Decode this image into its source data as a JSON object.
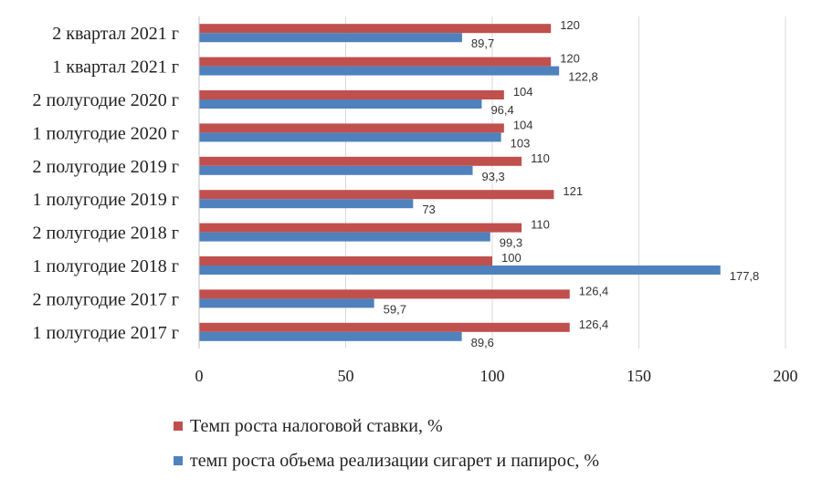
{
  "chart_data": {
    "type": "bar",
    "orientation": "horizontal",
    "categories": [
      "1 полугодие 2017 г",
      "2 полугодие 2017 г",
      "1 полугодие 2018 г",
      "2 полугодие 2018 г",
      "1 полугодие 2019 г",
      "2 полугодие 2019 г",
      "1 полугодие 2020 г",
      "2 полугодие 2020 г",
      "1 квартал 2021 г",
      "2 квартал 2021 г"
    ],
    "series": [
      {
        "name": "Темп роста налоговой ставки, %",
        "color": "#c0504d",
        "values": [
          126.4,
          126.4,
          100,
          110,
          121,
          110,
          104,
          104,
          120,
          120
        ],
        "labels": [
          "126,4",
          "126,4",
          "100",
          "110",
          "121",
          "110",
          "104",
          "104",
          "120",
          "120"
        ]
      },
      {
        "name": "темп роста объема реализации сигарет и папирос, %",
        "color": "#4f81bd",
        "values": [
          89.6,
          59.7,
          177.8,
          99.3,
          73,
          93.3,
          103,
          96.4,
          122.8,
          89.7
        ],
        "labels": [
          "89,6",
          "59,7",
          "177,8",
          "99,3",
          "73",
          "93,3",
          "103",
          "96,4",
          "122,8",
          "89,7"
        ]
      }
    ],
    "xlim": [
      0,
      200
    ],
    "xticks": [
      "0",
      "50",
      "100",
      "150",
      "200"
    ],
    "grid": true,
    "legend_position": "bottom"
  }
}
